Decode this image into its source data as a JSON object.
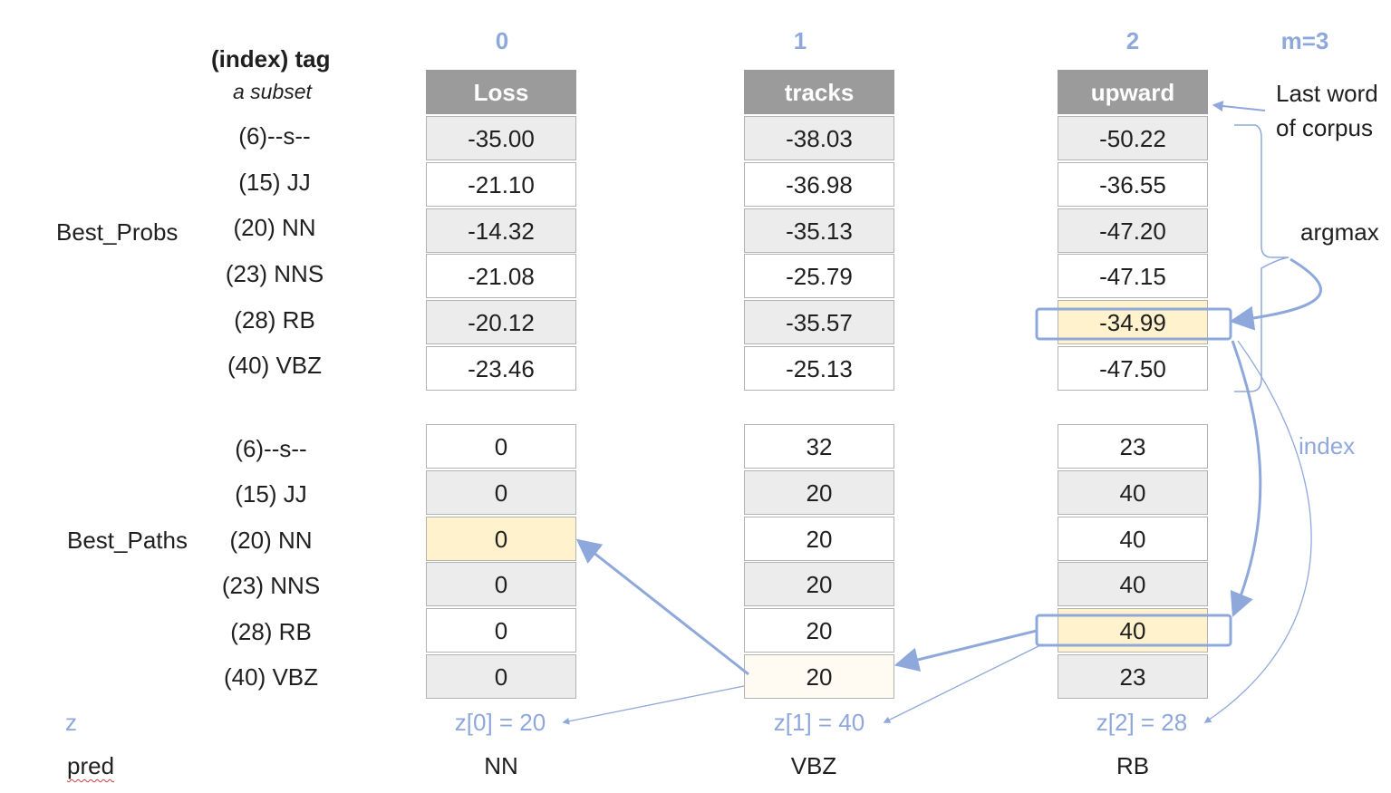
{
  "header": {
    "title": "(index) tag",
    "subtitle": "a subset",
    "m_label": "m=3",
    "column_indices": [
      "0",
      "1",
      "2"
    ]
  },
  "tags": [
    "(6)--s--",
    "(15) JJ",
    "(20) NN",
    "(23) NNS",
    "(28) RB",
    "(40) VBZ"
  ],
  "best_probs": {
    "label": "Best_Probs",
    "words": [
      "Loss",
      "tracks",
      "upward"
    ],
    "rows": [
      [
        "-35.00",
        "-38.03",
        "-50.22"
      ],
      [
        "-21.10",
        "-36.98",
        "-36.55"
      ],
      [
        "-14.32",
        "-35.13",
        "-47.20"
      ],
      [
        "-21.08",
        "-25.79",
        "-47.15"
      ],
      [
        "-20.12",
        "-35.57",
        "-34.99"
      ],
      [
        "-23.46",
        "-25.13",
        "-47.50"
      ]
    ]
  },
  "best_paths": {
    "label": "Best_Paths",
    "rows": [
      [
        "0",
        "32",
        "23"
      ],
      [
        "0",
        "20",
        "40"
      ],
      [
        "0",
        "20",
        "40"
      ],
      [
        "0",
        "20",
        "40"
      ],
      [
        "0",
        "20",
        "40"
      ],
      [
        "0",
        "20",
        "23"
      ]
    ]
  },
  "z": {
    "label": "z",
    "values": [
      "z[0] = 20",
      "z[1] = 40",
      "z[2] = 28"
    ]
  },
  "pred": {
    "label": "pred",
    "values": [
      "NN",
      "VBZ",
      "RB"
    ]
  },
  "annotations": {
    "last_word_line1": "Last word",
    "last_word_line2": "of corpus",
    "argmax": "argmax",
    "index": "index"
  },
  "colors": {
    "accent_blue": "#8fa8dc",
    "header_gray": "#9b9b9b",
    "highlight": "#fff2cc",
    "row_shade": "#ececec"
  }
}
